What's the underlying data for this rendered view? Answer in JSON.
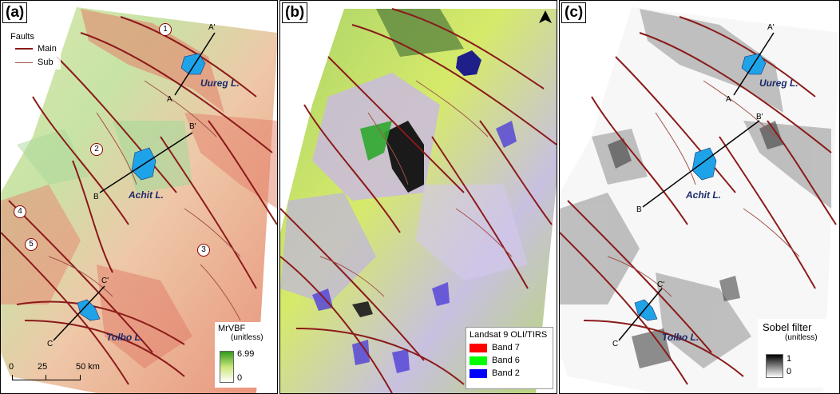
{
  "panels": [
    {
      "label": "(a)"
    },
    {
      "label": "(b)"
    },
    {
      "label": "(c)"
    }
  ],
  "lakes": {
    "uureg": "Uureg L.",
    "achit": "Achit L.",
    "tolbo": "Tolbo L."
  },
  "profiles": {
    "a": "A",
    "a2": "A'",
    "b": "B",
    "b2": "B'",
    "c": "C",
    "c2": "C'"
  },
  "fault_numbers": [
    "1",
    "2",
    "3",
    "4",
    "5"
  ],
  "faults_legend": {
    "title": "Faults",
    "main": "Main",
    "sub": "Sub",
    "main_color": "#8b1a1a",
    "sub_color": "#a0524a"
  },
  "scale_bar": {
    "t0": "0",
    "t1": "25",
    "t2": "50 km"
  },
  "mrvbf_legend": {
    "title": "MrVBF",
    "unit": "(unitless)",
    "max": "6.99",
    "min": "0"
  },
  "landsat_legend": {
    "title": "Landsat 9 OLI/TIRS",
    "bands": [
      {
        "name": "Band 7",
        "color": "#ff0000"
      },
      {
        "name": "Band 6",
        "color": "#00ff00"
      },
      {
        "name": "Band 2",
        "color": "#0000ff"
      }
    ]
  },
  "sobel_legend": {
    "title": "Sobel filter",
    "unit": "(unitless)",
    "max": "1",
    "min": "0"
  },
  "colors": {
    "lake": "#1fa3e8",
    "fault": "#8b1a1a"
  }
}
